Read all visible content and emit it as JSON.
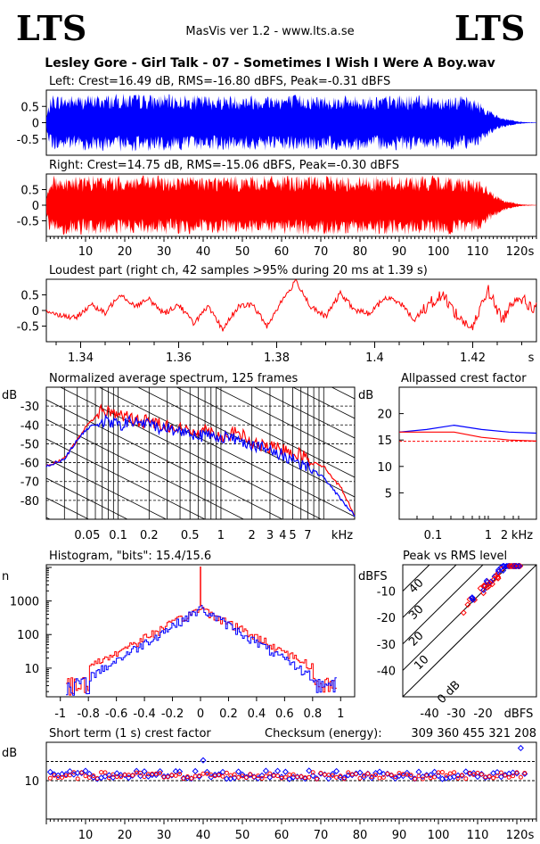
{
  "header": {
    "logo_left": "LTS",
    "logo_right": "LTS",
    "app_title": "MasVis ver 1.2 - www.lts.a.se",
    "file_title": "Lesley Gore - Girl Talk - 07 - Sometimes I Wish I Were A Boy.wav"
  },
  "chart_data": [
    {
      "id": "left",
      "type": "area",
      "title": "Left: Crest=16.49 dB, RMS=-16.80 dBFS, Peak=-0.31 dBFS",
      "yticks": [
        "0.5",
        "0",
        "-0.5"
      ],
      "ylim": [
        -1,
        1
      ],
      "xlim": [
        0,
        125
      ],
      "color": "#0000ff",
      "envelope": {
        "x": [
          0,
          0.5,
          1.4,
          5,
          20,
          40,
          60,
          80,
          100,
          105,
          108,
          110,
          112,
          114,
          116,
          118,
          120,
          122,
          125
        ],
        "y": [
          0.2,
          0.5,
          0.88,
          0.85,
          0.9,
          0.85,
          0.88,
          0.84,
          0.86,
          0.84,
          0.8,
          0.7,
          0.5,
          0.3,
          0.18,
          0.1,
          0.05,
          0.02,
          0.01
        ]
      }
    },
    {
      "id": "right",
      "type": "area",
      "title": "Right: Crest=14.75 dB, RMS=-15.06 dBFS, Peak=-0.30 dBFS",
      "yticks": [
        "0.5",
        "0",
        "-0.5"
      ],
      "ylim": [
        -1,
        1
      ],
      "xlim": [
        0,
        125
      ],
      "xticks": [
        10,
        20,
        30,
        40,
        50,
        60,
        70,
        80,
        90,
        100,
        110,
        120
      ],
      "xunit": "s",
      "color": "#ff0000",
      "envelope": {
        "x": [
          0,
          0.5,
          1.4,
          5,
          20,
          40,
          60,
          80,
          100,
          105,
          108,
          110,
          112,
          114,
          116,
          118,
          120,
          122,
          125
        ],
        "y": [
          0.3,
          0.7,
          0.97,
          0.95,
          0.96,
          0.95,
          0.96,
          0.95,
          0.96,
          0.95,
          0.92,
          0.85,
          0.65,
          0.4,
          0.22,
          0.12,
          0.06,
          0.02,
          0.01
        ]
      }
    },
    {
      "id": "loudest",
      "type": "line",
      "title": "Loudest part (right ch, 42 samples >95% during 20 ms at 1.39 s)",
      "yticks": [
        "0.5",
        "0",
        "-0.5"
      ],
      "ylim": [
        -1,
        1
      ],
      "xlim": [
        1.333,
        1.433
      ],
      "xticks": [
        "1.34",
        "1.36",
        "1.38",
        "1.4",
        "1.42"
      ],
      "xunit": "s",
      "color": "#ff0000",
      "x": [
        1.333,
        1.336,
        1.339,
        1.342,
        1.345,
        1.348,
        1.351,
        1.354,
        1.357,
        1.36,
        1.363,
        1.366,
        1.369,
        1.372,
        1.375,
        1.378,
        1.381,
        1.384,
        1.387,
        1.39,
        1.393,
        1.396,
        1.399,
        1.402,
        1.405,
        1.408,
        1.411,
        1.414,
        1.417,
        1.42,
        1.423,
        1.426,
        1.429,
        1.432
      ],
      "y": [
        0.0,
        -0.15,
        -0.25,
        0.2,
        -0.1,
        0.55,
        0.15,
        0.35,
        -0.1,
        0.2,
        -0.4,
        0.1,
        -0.6,
        0.1,
        0.2,
        -0.5,
        0.3,
        0.95,
        0.1,
        -0.2,
        0.55,
        0.0,
        -0.1,
        0.4,
        0.3,
        -0.3,
        0.2,
        0.5,
        -0.2,
        -0.6,
        0.7,
        -0.3,
        0.5,
        0.1
      ]
    },
    {
      "id": "spectrum",
      "type": "line",
      "title": "Normalized average spectrum, 125 frames",
      "ylabel": "dB",
      "yticks": [
        "-30",
        "-40",
        "-50",
        "-60",
        "-70",
        "-80"
      ],
      "ylim": [
        -90,
        -20
      ],
      "xticks": [
        "0.05",
        "0.1",
        "0.2",
        "0.5",
        "1",
        "2",
        "3",
        "4",
        "5",
        "7"
      ],
      "xunit": "kHz",
      "xlim": [
        0.02,
        20
      ],
      "series": [
        {
          "color": "#ff0000",
          "f": [
            0.02,
            0.03,
            0.04,
            0.05,
            0.07,
            0.1,
            0.15,
            0.2,
            0.3,
            0.5,
            0.7,
            1,
            1.5,
            2,
            3,
            4,
            5,
            7,
            10,
            15,
            20
          ],
          "y": [
            -62,
            -58,
            -48,
            -40,
            -32,
            -34,
            -38,
            -38,
            -40,
            -44,
            -42,
            -46,
            -44,
            -50,
            -52,
            -53,
            -54,
            -58,
            -62,
            -74,
            -88
          ]
        },
        {
          "color": "#0000ff",
          "f": [
            0.02,
            0.03,
            0.04,
            0.05,
            0.07,
            0.1,
            0.15,
            0.2,
            0.3,
            0.5,
            0.7,
            1,
            1.5,
            2,
            3,
            4,
            5,
            7,
            10,
            15,
            20
          ],
          "y": [
            -62,
            -58,
            -48,
            -42,
            -38,
            -40,
            -38,
            -40,
            -42,
            -44,
            -46,
            -46,
            -48,
            -50,
            -54,
            -56,
            -58,
            -62,
            -68,
            -80,
            -88
          ]
        }
      ]
    },
    {
      "id": "allpass",
      "type": "line",
      "title": "Allpassed crest factor",
      "ylabel": "dB",
      "yticks": [
        "20",
        "15",
        "10",
        "5"
      ],
      "ylim": [
        0,
        25
      ],
      "xticks": [
        "0.1",
        "1",
        "2"
      ],
      "xunit": "kHz",
      "series": [
        {
          "color": "#0000ff",
          "x": [
            0,
            0.2,
            0.4,
            0.6,
            0.8,
            1
          ],
          "y": [
            16.5,
            17,
            17.8,
            17,
            16.5,
            16.3
          ]
        },
        {
          "color": "#ff0000",
          "x": [
            0,
            0.2,
            0.4,
            0.6,
            0.8,
            1
          ],
          "y": [
            16.5,
            16.5,
            16.5,
            15.5,
            15,
            14.8
          ]
        }
      ],
      "reference": 14.75
    },
    {
      "id": "histogram",
      "type": "line",
      "title": "Histogram, \"bits\": 15.4/15.6",
      "ylabel": "n",
      "yticks": [
        "1000",
        "100",
        "10"
      ],
      "xticks": [
        "-1",
        "-0.8",
        "-0.6",
        "-0.4",
        "-0.2",
        "0",
        "0.2",
        "0.4",
        "0.6",
        "0.8",
        "1"
      ],
      "xlim": [
        -1.1,
        1.1
      ]
    },
    {
      "id": "peakrms",
      "type": "scatter",
      "title": "Peak vs RMS level",
      "ylabel": "dBFS",
      "xunit": "dBFS",
      "yticks": [
        "-10",
        "-20",
        "-30",
        "-40"
      ],
      "xticks": [
        "-40",
        "-30",
        "-20"
      ],
      "diag_labels": [
        "40",
        "30",
        "20",
        "10",
        "0 dB"
      ],
      "xlim": [
        -50,
        0
      ],
      "ylim": [
        -50,
        0
      ]
    },
    {
      "id": "shortcrest",
      "type": "scatter",
      "title": "Short term (1 s) crest factor",
      "checksum_label": "Checksum (energy):",
      "checksum": "309 360 455 321 208",
      "ylabel": "dB",
      "yticks": [
        "10"
      ],
      "xticks": [
        10,
        20,
        30,
        40,
        50,
        60,
        70,
        80,
        90,
        100,
        110,
        120
      ],
      "xunit": "s",
      "xlim": [
        0,
        125
      ]
    }
  ]
}
